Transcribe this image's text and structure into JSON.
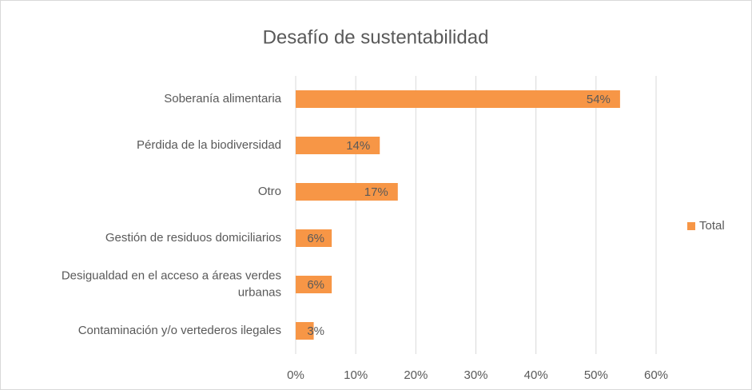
{
  "chart_data": {
    "type": "bar",
    "orientation": "horizontal",
    "title": "Desafío de sustentabilidad",
    "categories": [
      "Soberanía alimentaria",
      "Pérdida de la biodiversidad",
      "Otro",
      "Gestión de residuos domiciliarios",
      "Desigualdad en el acceso a áreas verdes urbanas",
      "Contaminación y/o vertederos ilegales"
    ],
    "series": [
      {
        "name": "Total",
        "color": "#f79646",
        "values": [
          54,
          14,
          17,
          6,
          6,
          3
        ],
        "value_labels": [
          "54%",
          "14%",
          "17%",
          "6%",
          "6%",
          "3%"
        ]
      }
    ],
    "xlim": [
      0,
      60
    ],
    "xticks": [
      {
        "value": 0,
        "label": "0%"
      },
      {
        "value": 10,
        "label": "10%"
      },
      {
        "value": 20,
        "label": "20%"
      },
      {
        "value": 30,
        "label": "30%"
      },
      {
        "value": 40,
        "label": "40%"
      },
      {
        "value": 50,
        "label": "50%"
      },
      {
        "value": 60,
        "label": "60%"
      }
    ],
    "grid": true,
    "legend": "right"
  }
}
